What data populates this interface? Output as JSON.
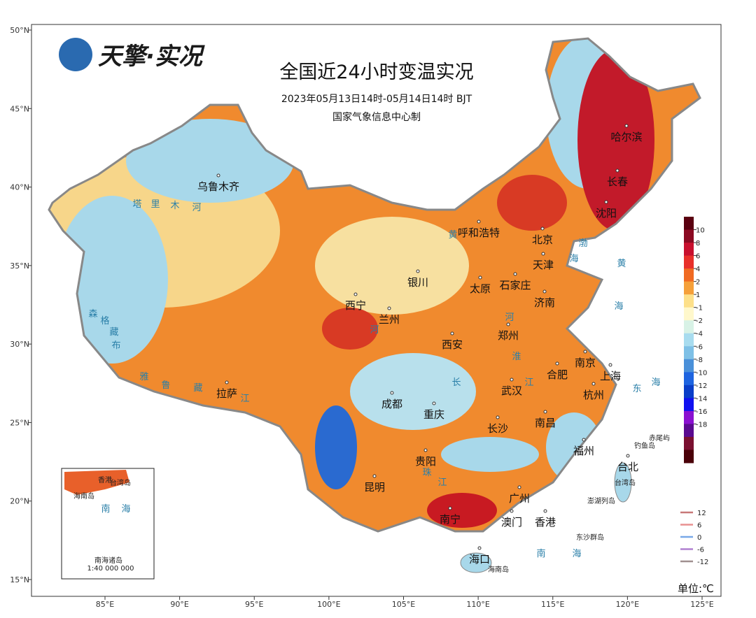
{
  "header": {
    "logo": "天擎·实况",
    "title": "全国近24小时变温实况",
    "subtitle": "2023年05月13日14时-05月14日14时  BJT",
    "producer": "国家气象信息中心制"
  },
  "axes": {
    "lat_ticks": [
      {
        "value": 50,
        "label": "50°N"
      },
      {
        "value": 45,
        "label": "45°N"
      },
      {
        "value": 40,
        "label": "40°N"
      },
      {
        "value": 35,
        "label": "35°N"
      },
      {
        "value": 30,
        "label": "30°N"
      },
      {
        "value": 25,
        "label": "25°N"
      },
      {
        "value": 20,
        "label": "20°N"
      },
      {
        "value": 15,
        "label": "15°N"
      }
    ],
    "lon_ticks": [
      {
        "value": 85,
        "label": "85°E"
      },
      {
        "value": 90,
        "label": "90°E"
      },
      {
        "value": 95,
        "label": "95°E"
      },
      {
        "value": 100,
        "label": "100°E"
      },
      {
        "value": 105,
        "label": "105°E"
      },
      {
        "value": 110,
        "label": "110°E"
      },
      {
        "value": 115,
        "label": "115°E"
      },
      {
        "value": 120,
        "label": "120°E"
      },
      {
        "value": 125,
        "label": "125°E"
      }
    ]
  },
  "legend": {
    "colors": [
      "#5a0010",
      "#8b0a22",
      "#c8102e",
      "#e8302a",
      "#f06a22",
      "#f5a03a",
      "#fde08a",
      "#fff8cc",
      "#d8f2e6",
      "#a8dcef",
      "#7ec0e6",
      "#4a90d9",
      "#1e64e0",
      "#0a3ec8",
      "#1010f0",
      "#8a10d0",
      "#5a0a90",
      "#7a1030",
      "#4a0008"
    ],
    "labels": [
      10,
      8,
      6,
      4,
      2,
      1,
      -1,
      -2,
      -4,
      -6,
      -8,
      -10,
      -12,
      -14,
      -16,
      -18
    ]
  },
  "line_legend": {
    "items": [
      {
        "value": 12,
        "color": "#c87878"
      },
      {
        "value": 6,
        "color": "#e89090"
      },
      {
        "value": 0,
        "color": "#78a8e8"
      },
      {
        "value": -6,
        "color": "#b080d0"
      },
      {
        "value": -12,
        "color": "#a09090"
      }
    ]
  },
  "unit": "单位:℃",
  "cities": [
    "乌鲁木齐",
    "哈尔滨",
    "长春",
    "沈阳",
    "呼和浩特",
    "北京",
    "天津",
    "银川",
    "太原",
    "石家庄",
    "济南",
    "西宁",
    "兰州",
    "郑州",
    "西安",
    "南京",
    "合肥",
    "上海",
    "拉萨",
    "成都",
    "武汉",
    "杭州",
    "重庆",
    "长沙",
    "南昌",
    "贵阳",
    "福州",
    "台北",
    "昆明",
    "广州",
    "南宁",
    "澳门",
    "香港",
    "海口"
  ],
  "islands": [
    "赤尾屿",
    "钓鱼岛",
    "台湾岛",
    "澎湖列岛",
    "东沙群岛",
    "海南岛"
  ],
  "water_labels": [
    "渤",
    "海",
    "黄",
    "海",
    "东",
    "海",
    "南",
    "海",
    "塔",
    "里",
    "木",
    "河",
    "森",
    "格",
    "藏",
    "布",
    "雅",
    "鲁",
    "藏",
    "江",
    "长",
    "江",
    "珠",
    "江",
    "淮",
    "河",
    "黄",
    "河"
  ],
  "inset": {
    "labels": [
      "香港",
      "台湾岛",
      "海南岛",
      "南",
      "海",
      "南海诸岛",
      "1:40 000 000"
    ]
  }
}
